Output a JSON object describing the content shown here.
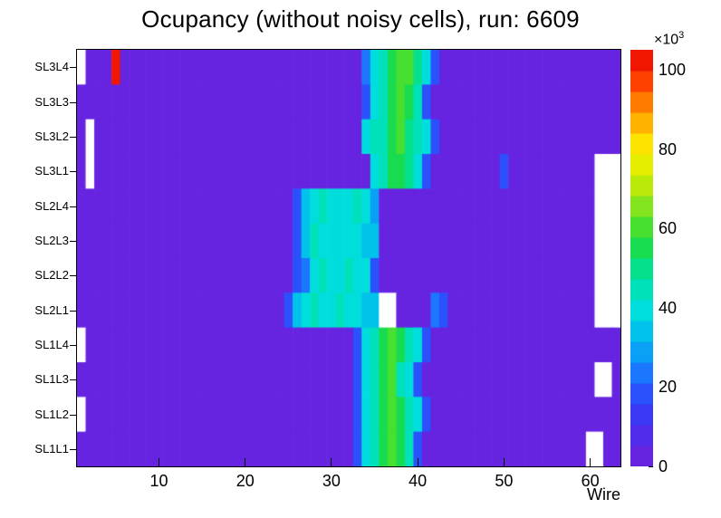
{
  "window": {
    "background": "#ffffff"
  },
  "chart_data": {
    "type": "heatmap",
    "title": "Ocupancy (without noisy cells), run: 6609",
    "xlabel": "Wire",
    "ylabel": "",
    "grid": false,
    "legend_position": "right-colorbar",
    "n_wires": 63,
    "x_range": [
      0.5,
      63.5
    ],
    "x_ticks": [
      10,
      20,
      30,
      40,
      50,
      60
    ],
    "zmax": 105,
    "z_ticks": [
      0,
      20,
      40,
      60,
      80,
      100
    ],
    "z_scale": {
      "mantissa": "×10",
      "exponent": "3"
    },
    "levels": 20,
    "value_unit": "counts × 10^3",
    "colormap": [
      [
        0.0,
        "#7020dc"
      ],
      [
        0.1,
        "#4630f0"
      ],
      [
        0.16,
        "#2f46fb"
      ],
      [
        0.22,
        "#1c73ff"
      ],
      [
        0.3,
        "#00b4f0"
      ],
      [
        0.38,
        "#00e0dc"
      ],
      [
        0.46,
        "#00e1a0"
      ],
      [
        0.54,
        "#1ddb3c"
      ],
      [
        0.62,
        "#7ce420"
      ],
      [
        0.7,
        "#d6ec00"
      ],
      [
        0.76,
        "#fdf100"
      ],
      [
        0.84,
        "#ffa500"
      ],
      [
        0.92,
        "#ff4500"
      ],
      [
        1.0,
        "#eb0000"
      ]
    ],
    "rows": [
      {
        "label": "SL3L4",
        "base": 4,
        "empty": [
          1
        ],
        "cells": {
          "5": 102,
          "34": 22,
          "35": 40,
          "36": 46,
          "37": 56,
          "38": 60,
          "39": 58,
          "40": 50,
          "41": 40,
          "42": 20
        }
      },
      {
        "label": "SL3L3",
        "base": 4,
        "empty": [],
        "cells": {
          "34": 20,
          "35": 40,
          "36": 44,
          "37": 56,
          "38": 58,
          "39": 54,
          "40": 44,
          "41": 20
        }
      },
      {
        "label": "SL3L2",
        "base": 4,
        "empty": [
          2
        ],
        "cells": {
          "34": 38,
          "35": 42,
          "36": 46,
          "37": 54,
          "38": 58,
          "39": 52,
          "40": 42,
          "41": 38,
          "42": 18
        }
      },
      {
        "label": "SL3L1",
        "base": 4,
        "empty": [
          2,
          61,
          62,
          63
        ],
        "cells": {
          "35": 38,
          "36": 44,
          "37": 54,
          "38": 56,
          "39": 50,
          "40": 40,
          "41": 18,
          "50": 16
        }
      },
      {
        "label": "SL2L4",
        "base": 4,
        "empty": [
          61,
          62,
          63
        ],
        "cells": {
          "26": 20,
          "27": 36,
          "28": 40,
          "29": 42,
          "30": 40,
          "31": 38,
          "32": 40,
          "33": 42,
          "34": 38,
          "35": 30
        }
      },
      {
        "label": "SL2L3",
        "base": 4,
        "empty": [
          61,
          62,
          63
        ],
        "cells": {
          "26": 18,
          "27": 34,
          "28": 42,
          "29": 40,
          "30": 38,
          "31": 40,
          "32": 38,
          "33": 40,
          "34": 36,
          "35": 34
        }
      },
      {
        "label": "SL2L2",
        "base": 4,
        "empty": [
          61,
          62,
          63
        ],
        "cells": {
          "26": 16,
          "27": 22,
          "28": 38,
          "29": 42,
          "30": 40,
          "31": 38,
          "32": 42,
          "33": 40,
          "34": 38,
          "35": 20
        }
      },
      {
        "label": "SL2L1",
        "base": 4,
        "empty": [
          36,
          37,
          61,
          62,
          63
        ],
        "cells": {
          "25": 20,
          "26": 36,
          "27": 40,
          "28": 42,
          "29": 40,
          "30": 38,
          "31": 42,
          "32": 40,
          "33": 38,
          "34": 36,
          "35": 34,
          "42": 22,
          "43": 18
        }
      },
      {
        "label": "SL1L4",
        "base": 4,
        "empty": [
          1
        ],
        "cells": {
          "33": 20,
          "34": 38,
          "35": 46,
          "36": 56,
          "37": 60,
          "38": 56,
          "39": 44,
          "40": 38,
          "41": 18
        }
      },
      {
        "label": "SL1L3",
        "base": 4,
        "empty": [
          61,
          62
        ],
        "cells": {
          "33": 18,
          "34": 38,
          "35": 44,
          "36": 54,
          "37": 58,
          "38": 46,
          "39": 40,
          "40": 20
        }
      },
      {
        "label": "SL1L2",
        "base": 4,
        "empty": [
          1
        ],
        "cells": {
          "33": 20,
          "34": 40,
          "35": 44,
          "36": 54,
          "37": 60,
          "38": 56,
          "39": 44,
          "40": 38,
          "41": 18
        }
      },
      {
        "label": "SL1L1",
        "base": 4,
        "empty": [
          60,
          61
        ],
        "cells": {
          "33": 16,
          "34": 38,
          "35": 44,
          "36": 56,
          "37": 58,
          "38": 54,
          "39": 42,
          "40": 20
        }
      }
    ]
  }
}
